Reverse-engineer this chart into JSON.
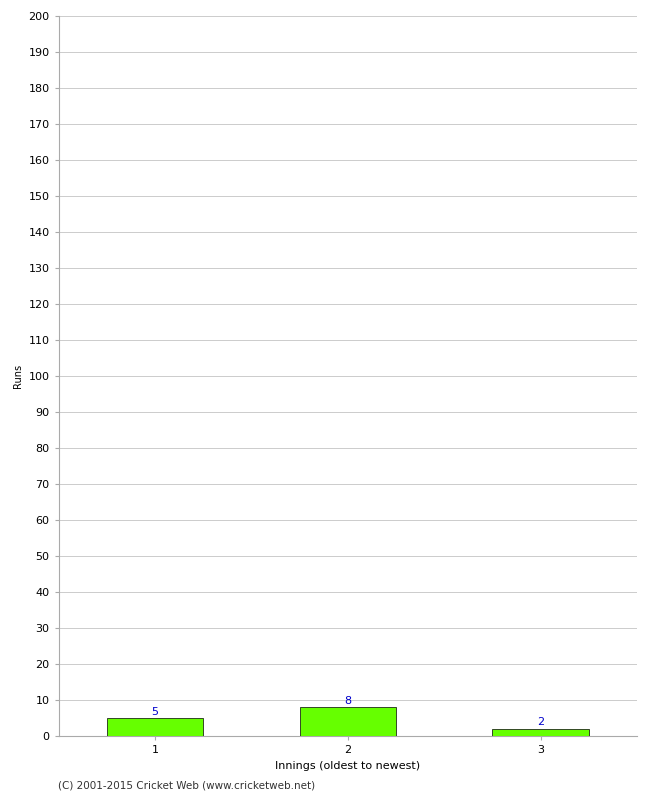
{
  "innings": [
    1,
    2,
    3
  ],
  "runs": [
    5,
    8,
    2
  ],
  "bar_color": "#66ff00",
  "bar_edge_color": "#000000",
  "label_color": "#0000cc",
  "xlabel": "Innings (oldest to newest)",
  "ylabel": "Runs",
  "ylim": [
    0,
    200
  ],
  "yticks": [
    0,
    10,
    20,
    30,
    40,
    50,
    60,
    70,
    80,
    90,
    100,
    110,
    120,
    130,
    140,
    150,
    160,
    170,
    180,
    190,
    200
  ],
  "xtick_labels": [
    "1",
    "2",
    "3"
  ],
  "background_color": "#ffffff",
  "grid_color": "#cccccc",
  "footer_text": "(C) 2001-2015 Cricket Web (www.cricketweb.net)",
  "bar_width": 0.5,
  "label_fontsize": 8,
  "axis_fontsize": 8,
  "ylabel_fontsize": 7,
  "xlabel_fontsize": 8,
  "footer_fontsize": 7.5
}
